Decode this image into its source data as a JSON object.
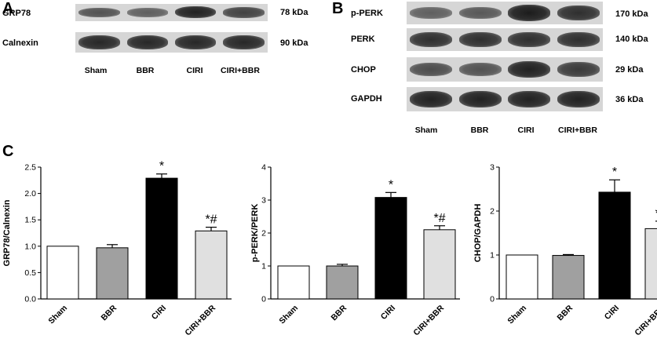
{
  "panels": {
    "A": {
      "letter": "A",
      "blots": [
        {
          "label": "GRP78",
          "kda": "78 kDa",
          "intensity": [
            0.55,
            0.45,
            0.95,
            0.7
          ]
        },
        {
          "label": "Calnexin",
          "kda": "90 kDa",
          "intensity": [
            0.9,
            0.9,
            0.9,
            0.9
          ]
        }
      ],
      "lanes": [
        "Sham",
        "BBR",
        "CIRI",
        "CIRI+BBR"
      ]
    },
    "B": {
      "letter": "B",
      "blots": [
        {
          "label": "p-PERK",
          "kda": "170 kDa",
          "intensity": [
            0.45,
            0.5,
            1.0,
            0.85
          ]
        },
        {
          "label": "PERK",
          "kda": "140 kDa",
          "intensity": [
            0.85,
            0.85,
            0.85,
            0.85
          ]
        },
        {
          "label": "CHOP",
          "kda": "29 kDa",
          "intensity": [
            0.6,
            0.55,
            0.95,
            0.75
          ]
        },
        {
          "label": "GAPDH",
          "kda": "36 kDa",
          "intensity": [
            0.95,
            0.95,
            0.95,
            0.95
          ]
        }
      ],
      "lanes": [
        "Sham",
        "BBR",
        "CIRI",
        "CIRI+BBR"
      ]
    },
    "C": {
      "letter": "C"
    }
  },
  "chart_data": [
    {
      "type": "bar",
      "categories": [
        "Sham",
        "BBR",
        "CIRI",
        "CIRI+BBR"
      ],
      "values": [
        1.0,
        0.97,
        2.29,
        1.29
      ],
      "errors": [
        0.0,
        0.06,
        0.08,
        0.07
      ],
      "annotations": [
        "",
        "",
        "*",
        "*#"
      ],
      "bar_colors": [
        "#ffffff",
        "#a0a0a0",
        "#000000",
        "#e0e0e0"
      ],
      "ylabel": "GRP78/Calnexin",
      "ylim": [
        0,
        2.5
      ],
      "yticks": [
        "0.0",
        "0.5",
        "1.0",
        "1.5",
        "2.0",
        "2.5"
      ]
    },
    {
      "type": "bar",
      "categories": [
        "Sham",
        "BBR",
        "CIRI",
        "CIRI+BBR"
      ],
      "values": [
        1.0,
        1.0,
        3.08,
        2.1
      ],
      "errors": [
        0.0,
        0.05,
        0.15,
        0.12
      ],
      "annotations": [
        "",
        "",
        "*",
        "*#"
      ],
      "bar_colors": [
        "#ffffff",
        "#a0a0a0",
        "#000000",
        "#e0e0e0"
      ],
      "ylabel": "p-PERK/PERK",
      "ylim": [
        0,
        4
      ],
      "yticks": [
        "0",
        "1",
        "2",
        "3",
        "4"
      ]
    },
    {
      "type": "bar",
      "categories": [
        "Sham",
        "BBR",
        "CIRI",
        "CIRI+BBR"
      ],
      "values": [
        1.0,
        0.99,
        2.43,
        1.6
      ],
      "errors": [
        0.0,
        0.02,
        0.28,
        0.17
      ],
      "annotations": [
        "",
        "",
        "*",
        "*#"
      ],
      "bar_colors": [
        "#ffffff",
        "#a0a0a0",
        "#000000",
        "#e0e0e0"
      ],
      "ylabel": "CHOP/GAPDH",
      "ylim": [
        0,
        3
      ],
      "yticks": [
        "0",
        "1",
        "2",
        "3"
      ]
    }
  ]
}
